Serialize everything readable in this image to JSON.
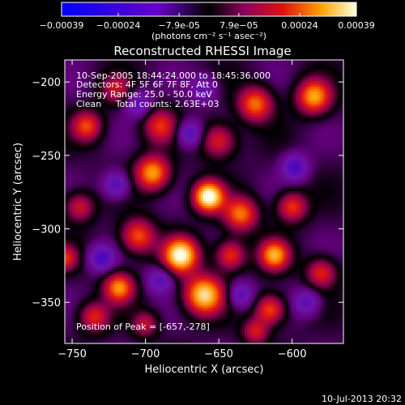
{
  "chart_data": {
    "type": "heatmap",
    "title": "Reconstructed RHESSI Image",
    "xlabel": "Heliocentric X (arcsec)",
    "ylabel": "Heliocentric Y (arcsec)",
    "xlim": [
      -755,
      -565
    ],
    "ylim": [
      -378,
      -185
    ],
    "x_ticks": [
      -750,
      -700,
      -650,
      -600
    ],
    "y_ticks": [
      -200,
      -250,
      -300,
      -350
    ],
    "colorbar": {
      "range": [
        -0.00039,
        0.00039
      ],
      "ticks": [
        {
          "value": -0.00039,
          "label": "-0.00039"
        },
        {
          "value": -0.00024,
          "label": "-0.00024"
        },
        {
          "value": -7.9e-05,
          "label": "-7.9e-05"
        },
        {
          "value": 7.9e-05,
          "label": "7.9e-05"
        },
        {
          "value": 0.00024,
          "label": "0.00024"
        },
        {
          "value": 0.00039,
          "label": "0.00039"
        }
      ],
      "unit_label": "(photons cm⁻² s⁻¹ asec⁻²)"
    },
    "annotations": {
      "time_range": "10-Sep-2005 18:44:24.000 to 18:45:36.000",
      "detectors": "Detectors: 4F 5F 6F 7F 8F, Att 0",
      "energy_range": "Energy Range: 25.0 - 50.0 keV",
      "method": "Clean     Total counts: 2.63E+03",
      "peak": "Position of Peak = [-657,-278]"
    },
    "sources": [
      {
        "x": -657,
        "y": -278,
        "amp": 1.0,
        "s": 7
      },
      {
        "x": -676,
        "y": -318,
        "amp": 0.95,
        "s": 8
      },
      {
        "x": -660,
        "y": -345,
        "amp": 0.85,
        "s": 9
      },
      {
        "x": -695,
        "y": -262,
        "amp": 0.7,
        "s": 8
      },
      {
        "x": -718,
        "y": -340,
        "amp": 0.65,
        "s": 7
      },
      {
        "x": -705,
        "y": -305,
        "amp": 0.55,
        "s": 8
      },
      {
        "x": -635,
        "y": -290,
        "amp": 0.6,
        "s": 8
      },
      {
        "x": -642,
        "y": -318,
        "amp": 0.5,
        "s": 7
      },
      {
        "x": -612,
        "y": -318,
        "amp": 0.7,
        "s": 7
      },
      {
        "x": -615,
        "y": -355,
        "amp": 0.55,
        "s": 7
      },
      {
        "x": -690,
        "y": -230,
        "amp": 0.45,
        "s": 8
      },
      {
        "x": -650,
        "y": -240,
        "amp": 0.45,
        "s": 8
      },
      {
        "x": -625,
        "y": -215,
        "amp": 0.6,
        "s": 8
      },
      {
        "x": -585,
        "y": -210,
        "amp": 0.7,
        "s": 8
      },
      {
        "x": -600,
        "y": -285,
        "amp": 0.5,
        "s": 7
      },
      {
        "x": -580,
        "y": -330,
        "amp": 0.45,
        "s": 7
      },
      {
        "x": -735,
        "y": -360,
        "amp": 0.45,
        "s": 7
      },
      {
        "x": -740,
        "y": -230,
        "amp": 0.5,
        "s": 7
      },
      {
        "x": -745,
        "y": -285,
        "amp": 0.4,
        "s": 7
      },
      {
        "x": -700,
        "y": -365,
        "amp": 0.35,
        "s": 6
      },
      {
        "x": -625,
        "y": -370,
        "amp": 0.4,
        "s": 6
      },
      {
        "x": -720,
        "y": -205,
        "amp": 0.35,
        "s": 7
      },
      {
        "x": -755,
        "y": -320,
        "amp": 0.45,
        "s": 6
      },
      {
        "x": -720,
        "y": -270,
        "amp": -0.45,
        "s": 6
      },
      {
        "x": -670,
        "y": -235,
        "amp": -0.45,
        "s": 6
      },
      {
        "x": -730,
        "y": -320,
        "amp": -0.5,
        "s": 6
      },
      {
        "x": -598,
        "y": -258,
        "amp": -0.5,
        "s": 6
      },
      {
        "x": -590,
        "y": -350,
        "amp": -0.4,
        "s": 6
      },
      {
        "x": -705,
        "y": -215,
        "amp": -0.4,
        "s": 6
      },
      {
        "x": -690,
        "y": -335,
        "amp": -0.4,
        "s": 6
      },
      {
        "x": -635,
        "y": -345,
        "amp": -0.4,
        "s": 6
      },
      {
        "x": -660,
        "y": -205,
        "amp": -0.35,
        "s": 6
      }
    ]
  },
  "footer": {
    "timestamp": "10-Jul-2013 20:32"
  }
}
